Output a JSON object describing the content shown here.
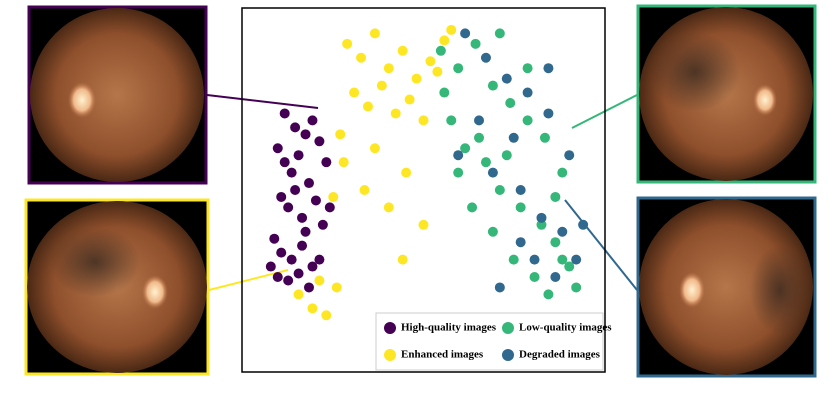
{
  "chart_data": {
    "type": "scatter",
    "xlim": [
      0,
      100
    ],
    "ylim": [
      0,
      100
    ],
    "legend": "lower right",
    "series": [
      {
        "name": "High-quality images",
        "color": "#440154",
        "x": [
          8,
          10,
          12,
          14,
          16,
          18,
          20,
          22,
          9,
          11,
          13,
          15,
          17,
          19,
          21,
          7,
          9,
          12,
          15,
          18,
          6,
          8,
          11,
          14,
          17,
          20,
          23,
          10,
          13,
          16
        ],
        "y": [
          62,
          58,
          55,
          60,
          66,
          70,
          64,
          58,
          48,
          45,
          50,
          42,
          52,
          47,
          40,
          36,
          32,
          30,
          34,
          28,
          28,
          25,
          24,
          26,
          22,
          30,
          45,
          72,
          68,
          38
        ]
      },
      {
        "name": "Low-quality images",
        "color": "#35b779",
        "x": [
          55,
          60,
          65,
          70,
          75,
          80,
          85,
          90,
          58,
          62,
          68,
          72,
          78,
          84,
          88,
          92,
          64,
          70,
          76,
          82,
          86,
          94,
          60,
          66,
          74,
          80,
          88,
          72,
          56,
          90
        ],
        "y": [
          90,
          85,
          92,
          80,
          75,
          70,
          65,
          55,
          70,
          62,
          58,
          50,
          45,
          40,
          35,
          28,
          45,
          38,
          30,
          25,
          20,
          22,
          55,
          65,
          60,
          85,
          48,
          95,
          78,
          30
        ]
      },
      {
        "name": "Enhanced images",
        "color": "#fde725",
        "x": [
          28,
          32,
          36,
          40,
          44,
          48,
          52,
          56,
          30,
          34,
          38,
          42,
          46,
          50,
          54,
          26,
          14,
          18,
          22,
          25,
          20,
          27,
          33,
          40,
          45,
          50,
          36,
          24,
          58,
          44
        ],
        "y": [
          92,
          88,
          95,
          85,
          90,
          82,
          87,
          93,
          78,
          74,
          80,
          72,
          76,
          70,
          84,
          66,
          20,
          16,
          14,
          22,
          24,
          58,
          50,
          45,
          55,
          40,
          62,
          48,
          96,
          30
        ]
      },
      {
        "name": "Degraded images",
        "color": "#31688e",
        "x": [
          62,
          68,
          74,
          80,
          86,
          92,
          70,
          78,
          84,
          90,
          66,
          76,
          82,
          88,
          94,
          72,
          60,
          86,
          78,
          96
        ],
        "y": [
          95,
          88,
          82,
          78,
          72,
          60,
          55,
          50,
          42,
          38,
          70,
          65,
          30,
          25,
          30,
          22,
          60,
          85,
          35,
          40
        ]
      }
    ]
  }
}
